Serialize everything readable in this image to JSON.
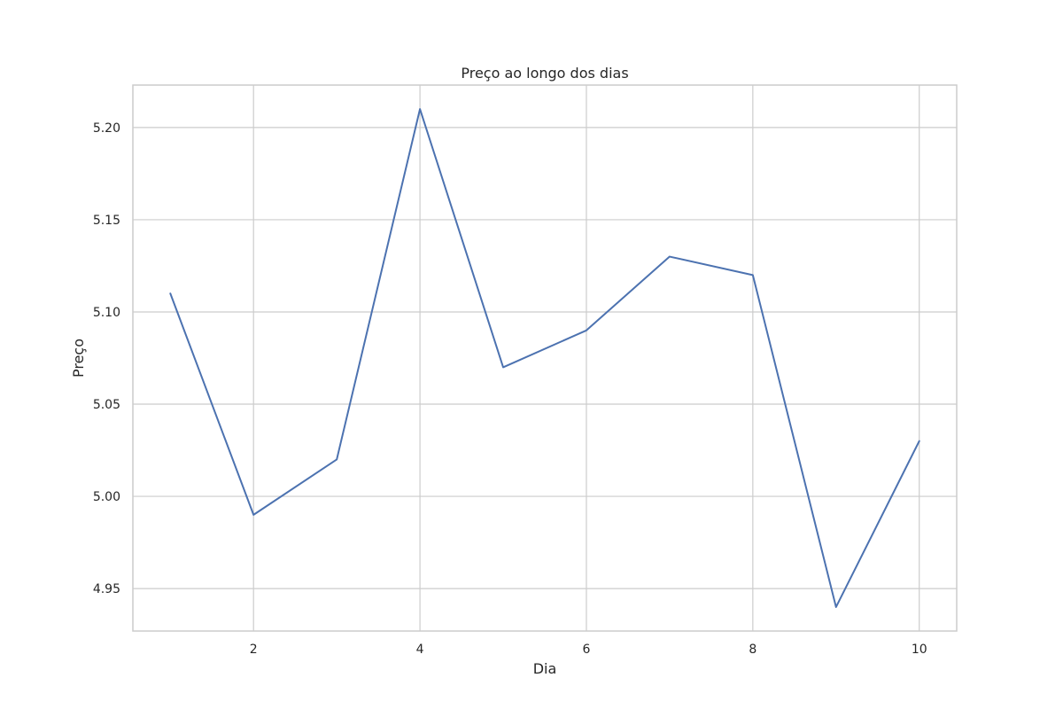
{
  "chart_data": {
    "type": "line",
    "title": "Preço ao longo dos dias",
    "xlabel": "Dia",
    "ylabel": "Preço",
    "x": [
      1,
      2,
      3,
      4,
      5,
      6,
      7,
      8,
      9,
      10
    ],
    "series": [
      {
        "values": [
          5.11,
          4.99,
          5.02,
          5.21,
          5.07,
          5.09,
          5.13,
          5.12,
          4.94,
          5.03
        ]
      }
    ],
    "xlim": [
      0.55,
      10.45
    ],
    "ylim": [
      4.927,
      5.223
    ],
    "xticks": [
      2,
      4,
      6,
      8,
      10
    ],
    "xtick_labels": [
      "2",
      "4",
      "6",
      "8",
      "10"
    ],
    "yticks": [
      4.95,
      5.0,
      5.05,
      5.1,
      5.15,
      5.2
    ],
    "ytick_labels": [
      "4.95",
      "5.00",
      "5.05",
      "5.10",
      "5.15",
      "5.20"
    ],
    "grid": true,
    "legend": "none",
    "colors": {
      "line": "#4c72b0",
      "grid": "#cccccc",
      "text": "#262626"
    }
  }
}
